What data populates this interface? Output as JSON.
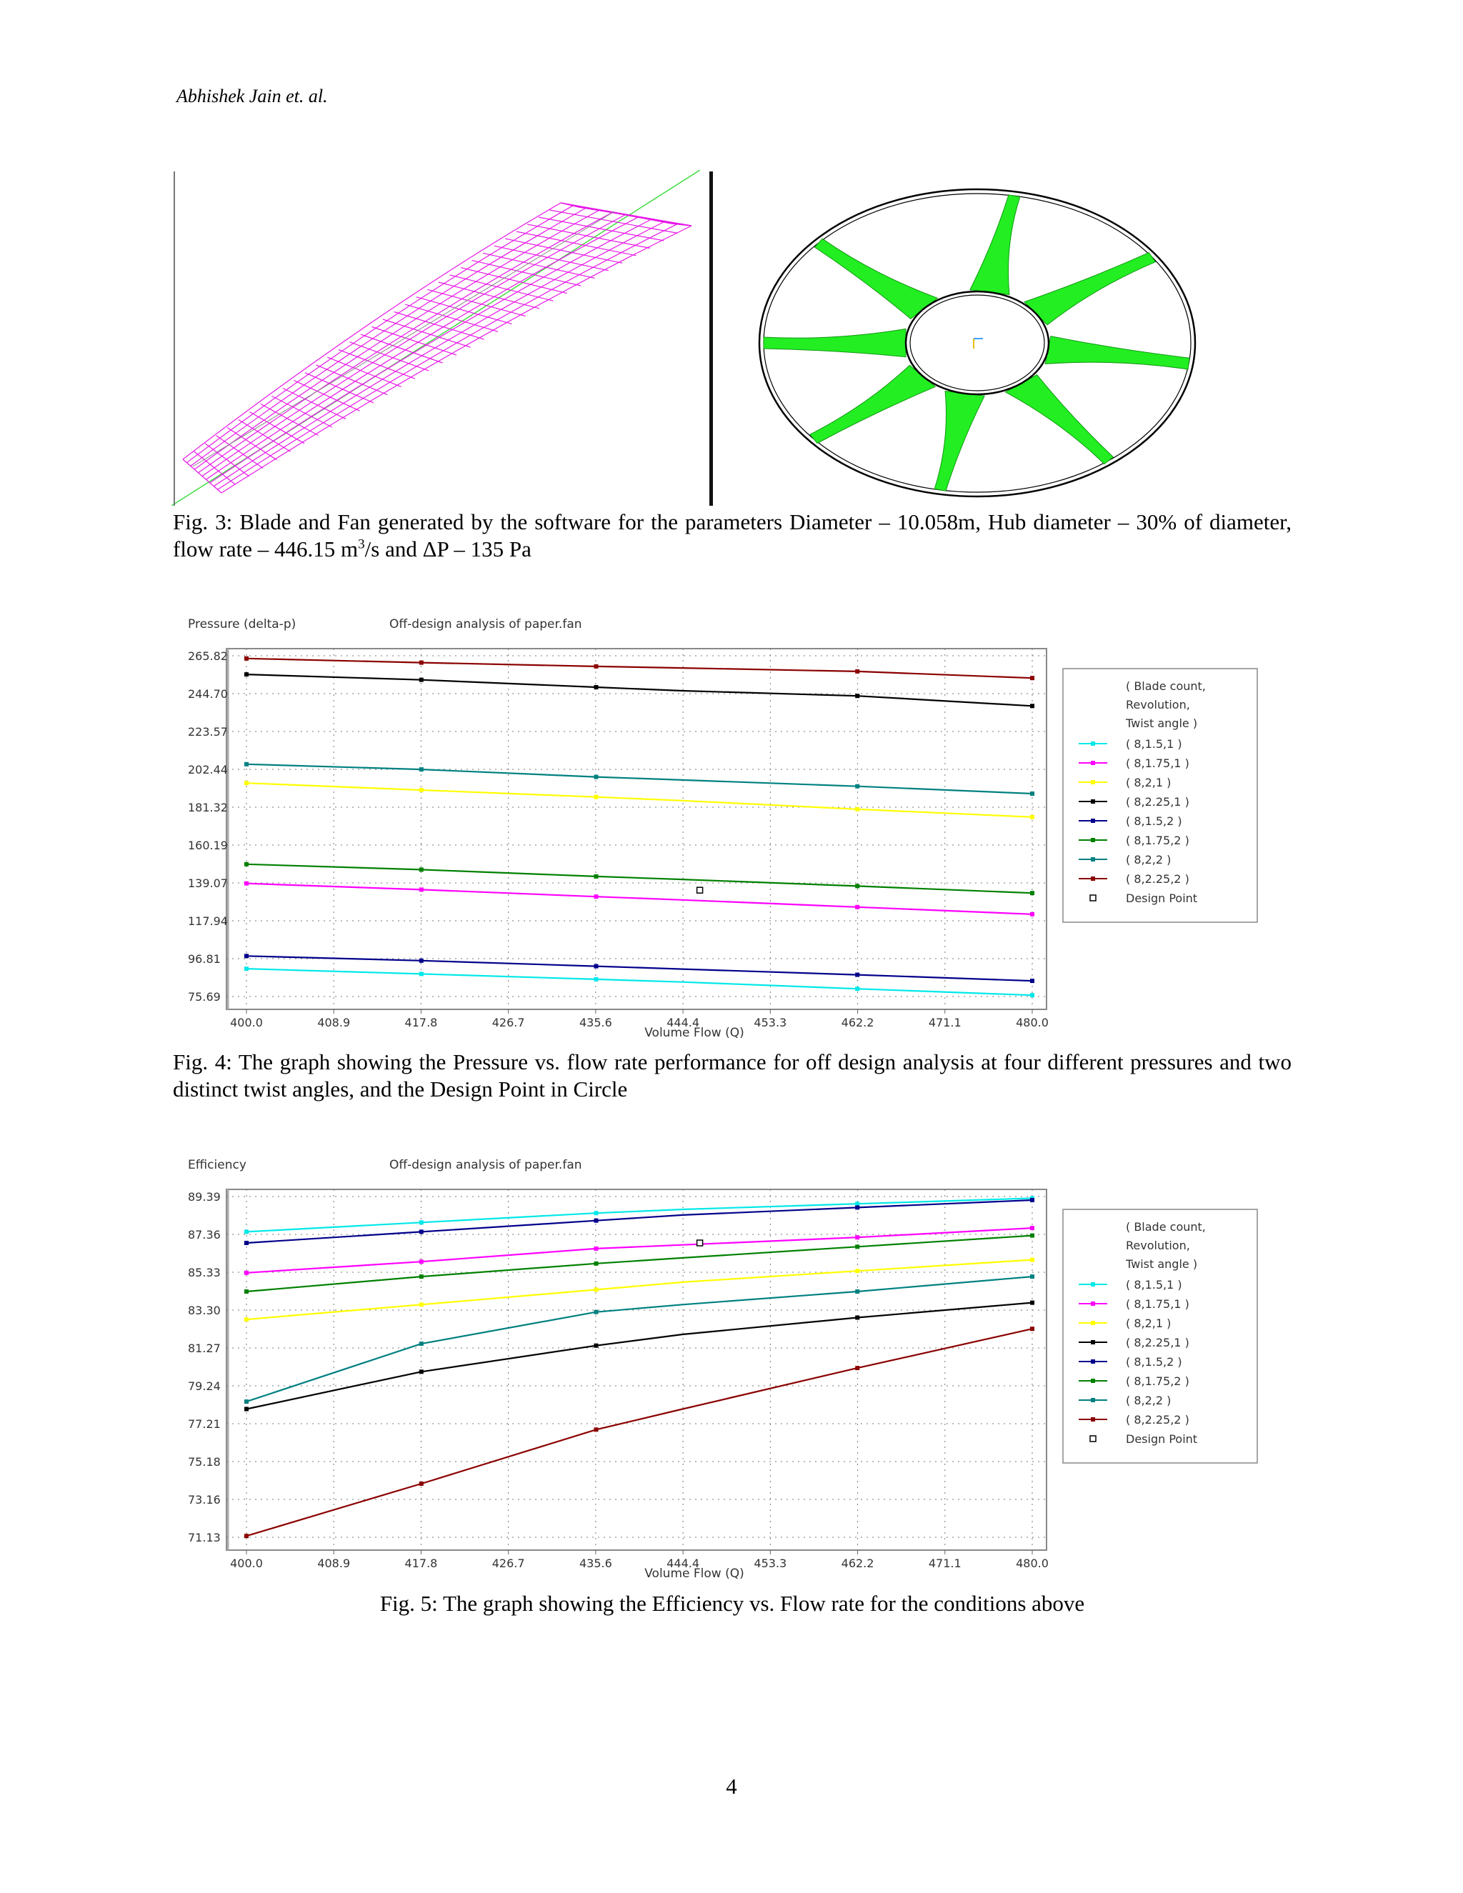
{
  "header": {
    "running_head": "Abhishek Jain  et. al."
  },
  "figure3": {
    "caption_main": "Fig. 3: Blade and Fan generated by the software for the parameters Diameter – 10.058m, Hub diameter – 30% of diameter, flow rate – 446.15 m",
    "caption_sup": "3",
    "caption_tail": "/s and ΔP – 135 Pa",
    "colors": {
      "blade_wire": "#e818e8",
      "fan_blades": "#22ee22",
      "rings": "#000000"
    }
  },
  "figure4": {
    "caption": "Fig. 4: The graph showing the Pressure vs. flow rate performance for off design analysis at four different pressures and two distinct twist angles, and the Design Point in Circle",
    "chart_data": {
      "type": "line",
      "title": "Off-design analysis of paper.fan",
      "ylabel": "Pressure (delta-p)",
      "xlabel": "Volume Flow (Q)",
      "x_ticks": [
        "400.0",
        "408.9",
        "417.8",
        "426.7",
        "435.6",
        "444.4",
        "453.3",
        "462.2",
        "471.1",
        "480.0"
      ],
      "y_ticks": [
        "75.69",
        "96.81",
        "117.94",
        "139.07",
        "160.19",
        "181.32",
        "202.44",
        "223.57",
        "244.70",
        "265.82"
      ],
      "xlim": [
        400.0,
        480.0
      ],
      "ylim": [
        75.69,
        265.82
      ],
      "grid": true,
      "legend_title_lines": [
        "( Blade count,",
        "Revolution,",
        "Twist angle )"
      ],
      "legend_position": "right",
      "series": [
        {
          "name": "( 8,1.5,1 )",
          "color": "#00e8e8",
          "x": [
            400.0,
            417.8,
            435.6,
            444.4,
            462.2,
            480.0
          ],
          "y": [
            91.2,
            88.3,
            85.3,
            83.8,
            80.0,
            76.4
          ]
        },
        {
          "name": "( 8,1.75,1 )",
          "color": "#ff00ff",
          "x": [
            400.0,
            417.8,
            435.6,
            444.4,
            462.2,
            480.0
          ],
          "y": [
            138.8,
            135.3,
            131.4,
            129.6,
            125.6,
            121.6
          ]
        },
        {
          "name": "( 8,2,1 )",
          "color": "#ffff00",
          "x": [
            400.0,
            417.8,
            435.6,
            444.4,
            462.2,
            480.0
          ],
          "y": [
            194.8,
            190.9,
            187.0,
            185.0,
            180.2,
            175.8
          ]
        },
        {
          "name": "( 8,2.25,1 )",
          "color": "#000000",
          "x": [
            400.0,
            417.8,
            435.6,
            444.4,
            462.2,
            480.0
          ],
          "y": [
            255.4,
            252.4,
            248.3,
            246.3,
            243.4,
            237.8
          ]
        },
        {
          "name": "( 8,1.5,2 )",
          "color": "#00008b",
          "x": [
            400.0,
            417.8,
            435.6,
            444.4,
            462.2,
            480.0
          ],
          "y": [
            98.3,
            95.7,
            92.6,
            91.0,
            87.8,
            84.4
          ]
        },
        {
          "name": "( 8,1.75,2 )",
          "color": "#008000",
          "x": [
            400.0,
            417.8,
            435.6,
            444.4,
            462.2,
            480.0
          ],
          "y": [
            149.5,
            146.5,
            142.7,
            141.0,
            137.3,
            133.4
          ]
        },
        {
          "name": "( 8,2,2 )",
          "color": "#008080",
          "x": [
            400.0,
            417.8,
            435.6,
            444.4,
            462.2,
            480.0
          ],
          "y": [
            205.3,
            202.4,
            198.2,
            196.5,
            193.0,
            188.9
          ]
        },
        {
          "name": "( 8,2.25,2 )",
          "color": "#8b0000",
          "x": [
            400.0,
            417.8,
            435.6,
            444.4,
            462.2,
            480.0
          ],
          "y": [
            264.3,
            262.0,
            259.9,
            259.0,
            257.1,
            253.4
          ]
        }
      ],
      "design_point": {
        "label": "Design Point",
        "x": 446.15,
        "y": 135.0
      }
    }
  },
  "figure5": {
    "caption": "Fig. 5: The graph showing the Efficiency vs. Flow rate for the conditions above",
    "chart_data": {
      "type": "line",
      "title": "Off-design analysis of paper.fan",
      "ylabel": "Efficiency",
      "xlabel": "Volume Flow (Q)",
      "x_ticks": [
        "400.0",
        "408.9",
        "417.8",
        "426.7",
        "435.6",
        "444.4",
        "453.3",
        "462.2",
        "471.1",
        "480.0"
      ],
      "y_ticks": [
        "71.13",
        "73.16",
        "75.18",
        "77.21",
        "79.24",
        "81.27",
        "83.30",
        "85.33",
        "87.36",
        "89.39"
      ],
      "xlim": [
        400.0,
        480.0
      ],
      "ylim": [
        71.13,
        89.39
      ],
      "grid": true,
      "legend_title_lines": [
        "( Blade count,",
        "Revolution,",
        "Twist angle )"
      ],
      "legend_position": "right",
      "series": [
        {
          "name": "( 8,1.5,1 )",
          "color": "#00e8e8",
          "x": [
            400.0,
            417.8,
            435.6,
            444.4,
            462.2,
            480.0
          ],
          "y": [
            87.5,
            88.0,
            88.5,
            88.7,
            89.0,
            89.3
          ]
        },
        {
          "name": "( 8,1.75,1 )",
          "color": "#ff00ff",
          "x": [
            400.0,
            417.8,
            435.6,
            444.4,
            462.2,
            480.0
          ],
          "y": [
            85.3,
            85.9,
            86.6,
            86.8,
            87.2,
            87.7
          ]
        },
        {
          "name": "( 8,2,1 )",
          "color": "#ffff00",
          "x": [
            400.0,
            417.8,
            435.6,
            444.4,
            462.2,
            480.0
          ],
          "y": [
            82.8,
            83.6,
            84.4,
            84.8,
            85.4,
            86.0
          ]
        },
        {
          "name": "( 8,2.25,1 )",
          "color": "#000000",
          "x": [
            400.0,
            417.8,
            435.6,
            444.4,
            462.2,
            480.0
          ],
          "y": [
            78.0,
            80.0,
            81.4,
            82.0,
            82.9,
            83.7
          ]
        },
        {
          "name": "( 8,1.5,2 )",
          "color": "#00008b",
          "x": [
            400.0,
            417.8,
            435.6,
            444.4,
            462.2,
            480.0
          ],
          "y": [
            86.9,
            87.5,
            88.1,
            88.4,
            88.8,
            89.2
          ]
        },
        {
          "name": "( 8,1.75,2 )",
          "color": "#008000",
          "x": [
            400.0,
            417.8,
            435.6,
            444.4,
            462.2,
            480.0
          ],
          "y": [
            84.3,
            85.1,
            85.8,
            86.1,
            86.7,
            87.3
          ]
        },
        {
          "name": "( 8,2,2 )",
          "color": "#008080",
          "x": [
            400.0,
            417.8,
            435.6,
            444.4,
            462.2,
            480.0
          ],
          "y": [
            78.4,
            81.5,
            83.2,
            83.6,
            84.3,
            85.1
          ]
        },
        {
          "name": "( 8,2.25,2 )",
          "color": "#8b0000",
          "x": [
            400.0,
            417.8,
            435.6,
            444.4,
            462.2,
            480.0
          ],
          "y": [
            71.2,
            74.0,
            76.9,
            78.0,
            80.2,
            82.3
          ]
        }
      ],
      "design_point": {
        "label": "Design Point",
        "x": 446.15,
        "y": 86.9
      }
    }
  },
  "page": {
    "number": "4"
  }
}
